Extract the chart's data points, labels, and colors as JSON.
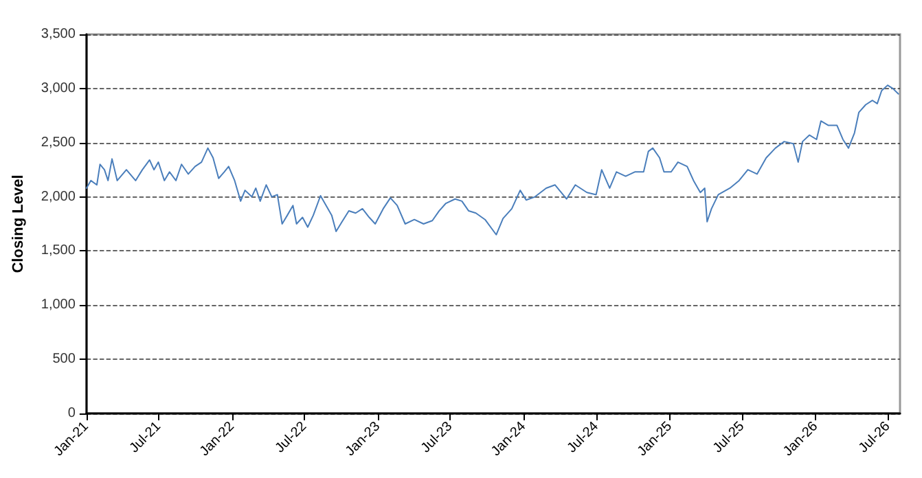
{
  "chart_data": {
    "type": "line",
    "ylabel": "Closing Level",
    "x": [
      "2021-01-01",
      "2021-01-12",
      "2021-01-27",
      "2021-02-04",
      "2021-02-15",
      "2021-02-24",
      "2021-03-06",
      "2021-03-19",
      "2021-04-11",
      "2021-05-04",
      "2021-05-21",
      "2021-06-08",
      "2021-06-19",
      "2021-06-30",
      "2021-07-15",
      "2021-07-28",
      "2021-08-13",
      "2021-08-27",
      "2021-09-13",
      "2021-09-30",
      "2021-10-16",
      "2021-11-01",
      "2021-11-14",
      "2021-11-28",
      "2021-12-12",
      "2021-12-23",
      "2022-01-07",
      "2022-01-22",
      "2022-02-02",
      "2022-02-19",
      "2022-03-01",
      "2022-03-12",
      "2022-03-27",
      "2022-04-10",
      "2022-04-24",
      "2022-05-06",
      "2022-05-19",
      "2022-06-02",
      "2022-06-11",
      "2022-06-26",
      "2022-07-09",
      "2022-07-23",
      "2022-08-10",
      "2022-08-24",
      "2022-09-07",
      "2022-09-18",
      "2022-10-03",
      "2022-10-20",
      "2022-11-06",
      "2022-11-23",
      "2022-12-10",
      "2022-12-25",
      "2023-01-14",
      "2023-02-01",
      "2023-02-18",
      "2023-03-10",
      "2023-04-02",
      "2023-04-25",
      "2023-05-17",
      "2023-06-03",
      "2023-06-20",
      "2023-07-13",
      "2023-07-30",
      "2023-08-16",
      "2023-09-03",
      "2023-09-26",
      "2023-10-24",
      "2023-11-10",
      "2023-12-02",
      "2023-12-23",
      "2024-01-07",
      "2024-01-29",
      "2024-02-26",
      "2024-03-19",
      "2024-04-17",
      "2024-05-09",
      "2024-06-07",
      "2024-06-30",
      "2024-07-14",
      "2024-08-03",
      "2024-08-20",
      "2024-09-12",
      "2024-10-05",
      "2024-10-27",
      "2024-11-08",
      "2024-11-19",
      "2024-12-06",
      "2024-12-17",
      "2025-01-04",
      "2025-01-21",
      "2025-02-13",
      "2025-03-01",
      "2025-03-18",
      "2025-03-29",
      "2025-04-04",
      "2025-04-15",
      "2025-05-02",
      "2025-05-31",
      "2025-06-23",
      "2025-07-15",
      "2025-08-07",
      "2025-08-30",
      "2025-09-22",
      "2025-10-14",
      "2025-11-06",
      "2025-11-18",
      "2025-11-29",
      "2025-12-16",
      "2026-01-03",
      "2026-01-14",
      "2026-02-01",
      "2026-02-23",
      "2026-03-10",
      "2026-03-24",
      "2026-04-08",
      "2026-04-19",
      "2026-05-06",
      "2026-05-23",
      "2026-06-04",
      "2026-06-15",
      "2026-06-30",
      "2026-07-13",
      "2026-07-27"
    ],
    "series": [
      {
        "color": "#4a7ebb",
        "values": [
          2080,
          2150,
          2110,
          2300,
          2250,
          2150,
          2350,
          2150,
          2250,
          2150,
          2250,
          2340,
          2250,
          2320,
          2150,
          2230,
          2150,
          2300,
          2210,
          2280,
          2320,
          2450,
          2360,
          2170,
          2230,
          2280,
          2150,
          1960,
          2060,
          2000,
          2080,
          1960,
          2110,
          2000,
          2020,
          1750,
          1830,
          1920,
          1750,
          1810,
          1720,
          1830,
          2010,
          1920,
          1830,
          1680,
          1770,
          1870,
          1850,
          1890,
          1810,
          1750,
          1890,
          1990,
          1920,
          1750,
          1790,
          1750,
          1780,
          1870,
          1940,
          1980,
          1960,
          1870,
          1850,
          1790,
          1650,
          1800,
          1890,
          2060,
          1970,
          2000,
          2080,
          2110,
          1980,
          2110,
          2040,
          2020,
          2250,
          2080,
          2230,
          2190,
          2230,
          2230,
          2420,
          2450,
          2360,
          2230,
          2230,
          2320,
          2280,
          2150,
          2040,
          2080,
          1770,
          1890,
          2020,
          2080,
          2150,
          2250,
          2210,
          2360,
          2450,
          2510,
          2490,
          2320,
          2510,
          2570,
          2530,
          2700,
          2660,
          2660,
          2530,
          2450,
          2590,
          2780,
          2850,
          2890,
          2860,
          2980,
          3030,
          3000,
          2950
        ]
      }
    ],
    "xlim": [
      "2021-01-01",
      "2026-07-31"
    ],
    "xticks": [
      {
        "value": "2021-01",
        "label": "Jan-21"
      },
      {
        "value": "2021-07",
        "label": "Jul-21"
      },
      {
        "value": "2022-01",
        "label": "Jan-22"
      },
      {
        "value": "2022-07",
        "label": "Jul-22"
      },
      {
        "value": "2023-01",
        "label": "Jan-23"
      },
      {
        "value": "2023-07",
        "label": "Jul-23"
      },
      {
        "value": "2024-01",
        "label": "Jan-24"
      },
      {
        "value": "2024-07",
        "label": "Jul-24"
      },
      {
        "value": "2025-01",
        "label": "Jan-25"
      },
      {
        "value": "2025-07",
        "label": "Jul-25"
      },
      {
        "value": "2026-01",
        "label": "Jan-26"
      },
      {
        "value": "2026-07",
        "label": "Jul-26"
      }
    ],
    "ylim": [
      0,
      3500
    ],
    "yticks": [
      0,
      {
        "value": 500,
        "label": "500"
      },
      {
        "value": 1000,
        "label": "1,000"
      },
      {
        "value": 1500,
        "label": "1,500"
      },
      {
        "value": 2000,
        "label": "2,000"
      },
      {
        "value": 2500,
        "label": "2,500"
      },
      {
        "value": 3000,
        "label": "3,000"
      },
      {
        "value": 3500,
        "label": "3,500"
      }
    ],
    "grid": "y",
    "marker": "none",
    "line_style": "solid"
  }
}
